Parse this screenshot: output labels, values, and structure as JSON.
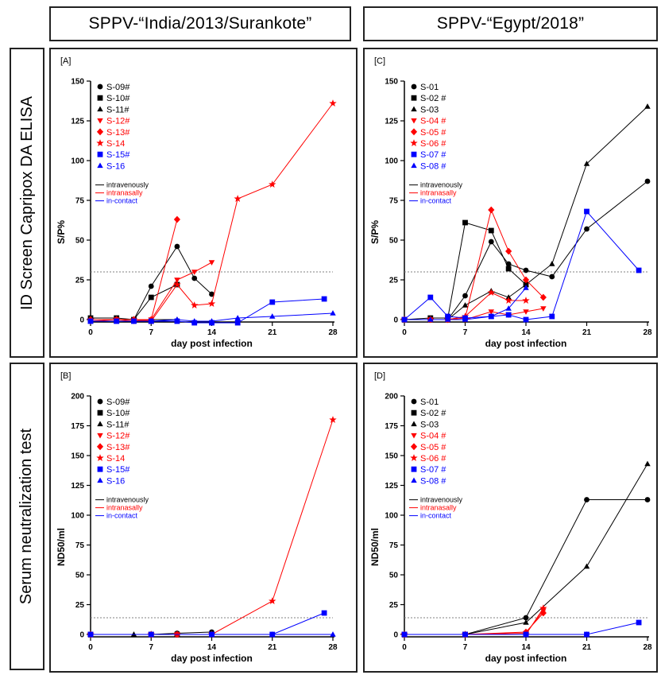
{
  "column_titles": [
    "SPPV-“India/2013/Surankote”",
    "SPPV-“Egypt/2018”"
  ],
  "row_titles": [
    "ID Screen Capripox DA ELISA",
    "Serum neutralization test"
  ],
  "colors": {
    "intravenously": "#000000",
    "intranasally": "#ff0000",
    "in_contact": "#0000ff",
    "threshold": "#808080"
  },
  "route_legend": [
    {
      "label": "intravenously",
      "color": "#000000"
    },
    {
      "label": "intranasally",
      "color": "#ff0000"
    },
    {
      "label": "in-contact",
      "color": "#0000ff"
    }
  ],
  "chart_data": [
    {
      "panel": "[A]",
      "type": "line",
      "xlabel": "day post infection",
      "ylabel": "S/P%",
      "xticks": [
        0,
        7,
        14,
        21,
        28
      ],
      "yticks": [
        0,
        25,
        50,
        75,
        100,
        125,
        150
      ],
      "xlim": [
        0,
        28
      ],
      "ylim": [
        0,
        150
      ],
      "threshold": 30,
      "series": [
        {
          "name": "S-09#",
          "color": "#000000",
          "marker": "circle",
          "points": [
            [
              0,
              0
            ],
            [
              3,
              0
            ],
            [
              5,
              0
            ],
            [
              7,
              21
            ],
            [
              10,
              46
            ],
            [
              12,
              26
            ],
            [
              14,
              16
            ]
          ]
        },
        {
          "name": "S-10#",
          "color": "#000000",
          "marker": "square",
          "points": [
            [
              0,
              1
            ],
            [
              3,
              1
            ],
            [
              5,
              0
            ],
            [
              7,
              14
            ],
            [
              10,
              22
            ]
          ]
        },
        {
          "name": "S-11#",
          "color": "#000000",
          "marker": "triangle",
          "points": [
            [
              0,
              0
            ],
            [
              3,
              0
            ],
            [
              5,
              0
            ],
            [
              7,
              0
            ],
            [
              10,
              0
            ]
          ]
        },
        {
          "name": "S-12#",
          "color": "#ff0000",
          "marker": "triangle-down",
          "points": [
            [
              0,
              -1
            ],
            [
              3,
              0
            ],
            [
              5,
              -1
            ],
            [
              7,
              0
            ],
            [
              10,
              25
            ],
            [
              12,
              30
            ],
            [
              14,
              36
            ]
          ]
        },
        {
          "name": "S-13#",
          "color": "#ff0000",
          "marker": "diamond",
          "points": [
            [
              0,
              0
            ],
            [
              3,
              0
            ],
            [
              5,
              0
            ],
            [
              7,
              0
            ],
            [
              10,
              63
            ]
          ]
        },
        {
          "name": "S-14",
          "color": "#ff0000",
          "marker": "star",
          "points": [
            [
              0,
              0
            ],
            [
              3,
              0
            ],
            [
              5,
              0
            ],
            [
              7,
              -1
            ],
            [
              10,
              22
            ],
            [
              12,
              9
            ],
            [
              14,
              10
            ],
            [
              17,
              76
            ],
            [
              21,
              85
            ],
            [
              28,
              136
            ]
          ]
        },
        {
          "name": "S-15#",
          "color": "#0000ff",
          "marker": "square",
          "points": [
            [
              0,
              -1
            ],
            [
              3,
              -1
            ],
            [
              5,
              -1
            ],
            [
              7,
              -1
            ],
            [
              10,
              -1
            ],
            [
              12,
              -2
            ],
            [
              14,
              -2
            ],
            [
              17,
              -2
            ],
            [
              21,
              11
            ],
            [
              27,
              13
            ]
          ]
        },
        {
          "name": "S-16",
          "color": "#0000ff",
          "marker": "triangle",
          "points": [
            [
              0,
              -1
            ],
            [
              3,
              -1
            ],
            [
              5,
              -1
            ],
            [
              7,
              -1
            ],
            [
              10,
              0
            ],
            [
              12,
              -1
            ],
            [
              14,
              -1
            ],
            [
              17,
              1
            ],
            [
              21,
              2
            ],
            [
              28,
              4
            ]
          ]
        }
      ]
    },
    {
      "panel": "[C]",
      "type": "line",
      "xlabel": "day post infection",
      "ylabel": "S/P%",
      "xticks": [
        0,
        7,
        14,
        21,
        28
      ],
      "yticks": [
        0,
        25,
        50,
        75,
        100,
        125,
        150
      ],
      "xlim": [
        0,
        28
      ],
      "ylim": [
        0,
        150
      ],
      "threshold": 30,
      "series": [
        {
          "name": "S-01",
          "color": "#000000",
          "marker": "circle",
          "points": [
            [
              0,
              0
            ],
            [
              3,
              0
            ],
            [
              5,
              0
            ],
            [
              7,
              15
            ],
            [
              10,
              49
            ],
            [
              12,
              35
            ],
            [
              14,
              31
            ],
            [
              17,
              27
            ],
            [
              21,
              57
            ],
            [
              28,
              87
            ]
          ]
        },
        {
          "name": "S-02 #",
          "color": "#000000",
          "marker": "square",
          "points": [
            [
              0,
              0
            ],
            [
              3,
              1
            ],
            [
              5,
              1
            ],
            [
              7,
              61
            ],
            [
              10,
              56
            ],
            [
              12,
              32
            ],
            [
              14,
              22
            ]
          ]
        },
        {
          "name": "S-03",
          "color": "#000000",
          "marker": "triangle",
          "points": [
            [
              0,
              0
            ],
            [
              3,
              0
            ],
            [
              5,
              0
            ],
            [
              7,
              9
            ],
            [
              10,
              18
            ],
            [
              12,
              14
            ],
            [
              14,
              22
            ],
            [
              17,
              35
            ],
            [
              21,
              98
            ],
            [
              28,
              134
            ]
          ]
        },
        {
          "name": "S-04 #",
          "color": "#ff0000",
          "marker": "triangle-down",
          "points": [
            [
              0,
              0
            ],
            [
              3,
              0
            ],
            [
              5,
              0
            ],
            [
              7,
              0
            ],
            [
              10,
              5
            ],
            [
              12,
              3
            ],
            [
              14,
              5
            ],
            [
              16,
              7
            ]
          ]
        },
        {
          "name": "S-05 #",
          "color": "#ff0000",
          "marker": "diamond",
          "points": [
            [
              0,
              0
            ],
            [
              3,
              0
            ],
            [
              5,
              0
            ],
            [
              7,
              1
            ],
            [
              10,
              69
            ],
            [
              12,
              43
            ],
            [
              14,
              25
            ],
            [
              16,
              14
            ]
          ]
        },
        {
          "name": "S-06 #",
          "color": "#ff0000",
          "marker": "star",
          "points": [
            [
              0,
              0
            ],
            [
              3,
              0
            ],
            [
              5,
              0
            ],
            [
              7,
              2
            ],
            [
              10,
              17
            ],
            [
              12,
              12
            ],
            [
              14,
              12
            ]
          ]
        },
        {
          "name": "S-07 #",
          "color": "#0000ff",
          "marker": "square",
          "points": [
            [
              0,
              0
            ],
            [
              3,
              14
            ],
            [
              5,
              2
            ],
            [
              7,
              1
            ],
            [
              10,
              2
            ],
            [
              12,
              3
            ],
            [
              14,
              0
            ],
            [
              17,
              2
            ],
            [
              21,
              68
            ],
            [
              27,
              31
            ]
          ]
        },
        {
          "name": "S-08 #",
          "color": "#0000ff",
          "marker": "triangle",
          "points": [
            [
              0,
              0
            ],
            [
              3,
              0
            ],
            [
              5,
              0
            ],
            [
              7,
              0
            ],
            [
              10,
              2
            ],
            [
              12,
              7
            ],
            [
              14,
              20
            ]
          ]
        }
      ]
    },
    {
      "panel": "[B]",
      "type": "line",
      "xlabel": "day post infection",
      "ylabel": "ND50/ml",
      "xticks": [
        0,
        7,
        14,
        21,
        28
      ],
      "yticks": [
        0,
        25,
        50,
        75,
        100,
        125,
        150,
        175,
        200
      ],
      "xlim": [
        0,
        28
      ],
      "ylim": [
        0,
        200
      ],
      "threshold": 14,
      "series": [
        {
          "name": "S-09#",
          "color": "#000000",
          "marker": "circle",
          "points": [
            [
              0,
              0
            ],
            [
              7,
              0
            ],
            [
              10,
              1
            ],
            [
              14,
              2
            ]
          ]
        },
        {
          "name": "S-10#",
          "color": "#000000",
          "marker": "square",
          "points": [
            [
              0,
              0
            ],
            [
              7,
              0
            ],
            [
              10,
              0
            ]
          ]
        },
        {
          "name": "S-11#",
          "color": "#000000",
          "marker": "triangle",
          "points": [
            [
              0,
              0
            ],
            [
              5,
              0
            ],
            [
              7,
              0
            ],
            [
              10,
              0
            ]
          ]
        },
        {
          "name": "S-12#",
          "color": "#ff0000",
          "marker": "triangle-down",
          "points": [
            [
              0,
              0
            ],
            [
              7,
              0
            ],
            [
              10,
              0
            ],
            [
              14,
              0
            ]
          ]
        },
        {
          "name": "S-13#",
          "color": "#ff0000",
          "marker": "diamond",
          "points": [
            [
              0,
              0
            ],
            [
              7,
              0
            ],
            [
              10,
              0
            ]
          ]
        },
        {
          "name": "S-14",
          "color": "#ff0000",
          "marker": "star",
          "points": [
            [
              0,
              0
            ],
            [
              7,
              0
            ],
            [
              10,
              0
            ],
            [
              14,
              0
            ],
            [
              21,
              28
            ],
            [
              28,
              180
            ]
          ]
        },
        {
          "name": "S-15#",
          "color": "#0000ff",
          "marker": "square",
          "points": [
            [
              0,
              0
            ],
            [
              7,
              0
            ],
            [
              14,
              0
            ],
            [
              21,
              0
            ],
            [
              27,
              18
            ]
          ]
        },
        {
          "name": "S-16",
          "color": "#0000ff",
          "marker": "triangle",
          "points": [
            [
              0,
              0
            ],
            [
              7,
              0
            ],
            [
              14,
              0
            ],
            [
              21,
              0
            ],
            [
              28,
              0
            ]
          ]
        }
      ]
    },
    {
      "panel": "[D]",
      "type": "line",
      "xlabel": "day post infection",
      "ylabel": "ND50/ml",
      "xticks": [
        0,
        7,
        14,
        21,
        28
      ],
      "yticks": [
        0,
        25,
        50,
        75,
        100,
        125,
        150,
        175,
        200
      ],
      "xlim": [
        0,
        28
      ],
      "ylim": [
        0,
        200
      ],
      "threshold": 14,
      "series": [
        {
          "name": "S-01",
          "color": "#000000",
          "marker": "circle",
          "points": [
            [
              0,
              0
            ],
            [
              7,
              0
            ],
            [
              14,
              14
            ],
            [
              21,
              113
            ],
            [
              28,
              113
            ]
          ]
        },
        {
          "name": "S-02 #",
          "color": "#000000",
          "marker": "square",
          "points": [
            [
              0,
              0
            ],
            [
              7,
              0
            ],
            [
              14,
              0
            ]
          ]
        },
        {
          "name": "S-03",
          "color": "#000000",
          "marker": "triangle",
          "points": [
            [
              0,
              0
            ],
            [
              7,
              0
            ],
            [
              14,
              10
            ],
            [
              21,
              57
            ],
            [
              28,
              143
            ]
          ]
        },
        {
          "name": "S-04 #",
          "color": "#ff0000",
          "marker": "triangle-down",
          "points": [
            [
              0,
              0
            ],
            [
              7,
              0
            ],
            [
              14,
              1
            ],
            [
              16,
              20
            ]
          ]
        },
        {
          "name": "S-05 #",
          "color": "#ff0000",
          "marker": "diamond",
          "points": [
            [
              0,
              0
            ],
            [
              7,
              0
            ],
            [
              14,
              2
            ],
            [
              16,
              18
            ]
          ]
        },
        {
          "name": "S-06 #",
          "color": "#ff0000",
          "marker": "star",
          "points": [
            [
              0,
              0
            ],
            [
              7,
              0
            ],
            [
              14,
              0
            ],
            [
              16,
              22
            ]
          ]
        },
        {
          "name": "S-07 #",
          "color": "#0000ff",
          "marker": "square",
          "points": [
            [
              0,
              0
            ],
            [
              7,
              0
            ],
            [
              14,
              0
            ],
            [
              21,
              0
            ],
            [
              27,
              10
            ]
          ]
        },
        {
          "name": "S-08 #",
          "color": "#0000ff",
          "marker": "triangle",
          "points": [
            [
              0,
              0
            ],
            [
              7,
              0
            ],
            [
              14,
              0
            ],
            [
              21,
              0
            ]
          ]
        }
      ]
    }
  ]
}
